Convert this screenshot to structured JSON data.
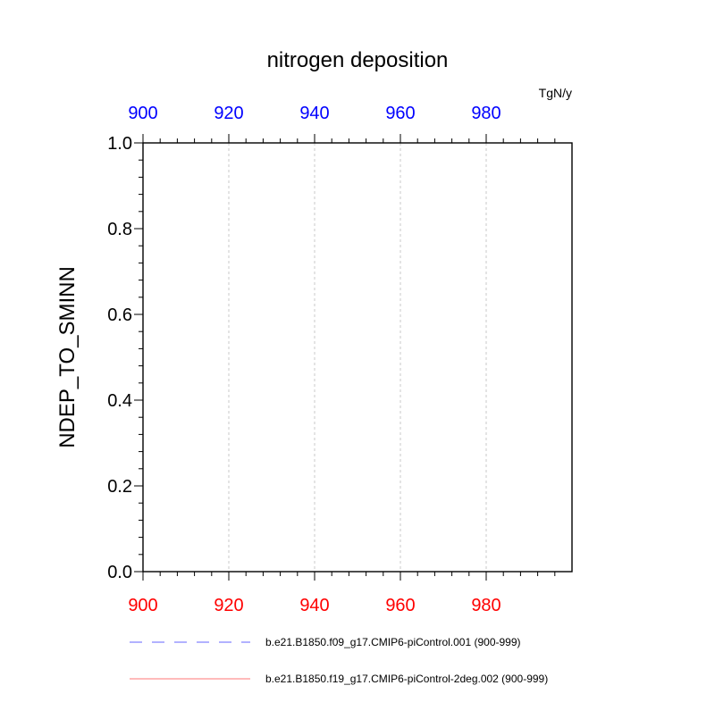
{
  "chart_data": {
    "type": "line",
    "title": "nitrogen deposition",
    "units": "TgN/y",
    "ylabel": "NDEP_TO_SMINN",
    "xlabel": "",
    "xlim": [
      900,
      999
    ],
    "ylim": [
      0.0,
      1.0
    ],
    "x_ticks": [
      "900",
      "920",
      "940",
      "960",
      "980"
    ],
    "y_ticks": [
      "0.0",
      "0.2",
      "0.4",
      "0.6",
      "0.8",
      "1.0"
    ],
    "top_axis_color": "#0000ff",
    "bottom_axis_color": "#ff0000",
    "grid": "vertical dashed at major x ticks",
    "legend_placement": "below",
    "series": [
      {
        "name": "b.e21.B1850.f09_g17.CMIP6-piControl.001 (900-999)",
        "color": "#6666ff",
        "style": "dashed",
        "x": [],
        "y": []
      },
      {
        "name": "b.e21.B1850.f19_g17.CMIP6-piControl-2deg.002 (900-999)",
        "color": "#ff7777",
        "style": "solid",
        "x": [],
        "y": []
      }
    ]
  }
}
